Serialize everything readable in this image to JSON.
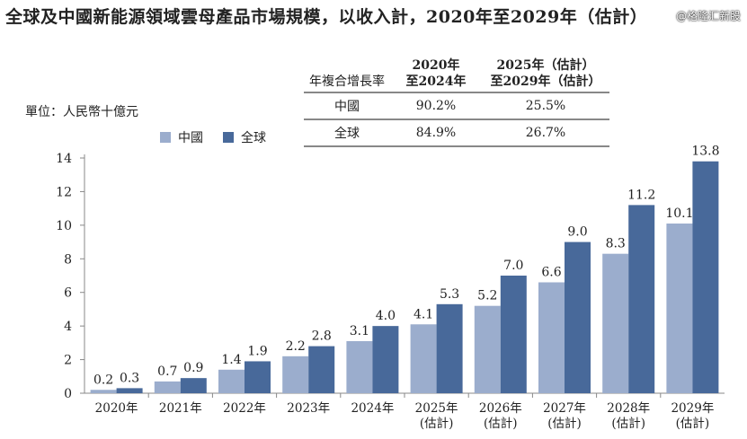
{
  "title": "全球及中國新能源領域雲母產品市場規模，以收入計，2020年至2029年（估計）",
  "watermark": "@格隆汇新股",
  "unit": "單位：人民幣十億元",
  "cagr_table": {
    "headers": [
      "年複合增長率",
      "2020年\n至2024年",
      "2025年（估計）\n至2029年（估計）"
    ],
    "rows": [
      [
        "中國",
        "90.2%",
        "25.5%"
      ],
      [
        "全球",
        "84.9%",
        "26.7%"
      ]
    ]
  },
  "chart_data": {
    "type": "bar",
    "categories": [
      "2020年",
      "2021年",
      "2022年",
      "2023年",
      "2024年",
      "2025年\n(估計)",
      "2026年\n(估計)",
      "2027年\n(估計)",
      "2028年\n(估計)",
      "2029年\n(估計)"
    ],
    "series": [
      {
        "name": "中國",
        "color": "#9badcd",
        "values": [
          0.2,
          0.7,
          1.4,
          2.2,
          3.1,
          4.1,
          5.2,
          6.6,
          8.3,
          10.1
        ]
      },
      {
        "name": "全球",
        "color": "#48699a",
        "values": [
          0.3,
          0.9,
          1.9,
          2.8,
          4.0,
          5.3,
          7.0,
          9.0,
          11.2,
          13.8
        ]
      }
    ],
    "ylim": [
      0,
      14
    ],
    "yticks": [
      0,
      2,
      4,
      6,
      8,
      10,
      12,
      14
    ],
    "legend": "top-left",
    "grid": false
  }
}
